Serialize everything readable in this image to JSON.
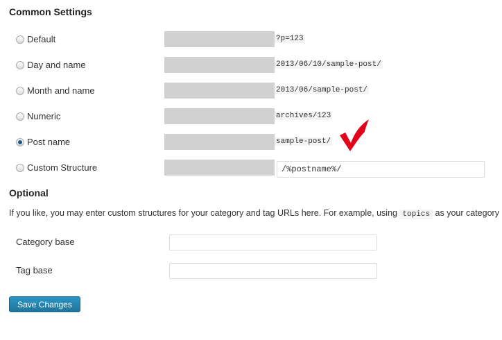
{
  "common": {
    "title": "Common Settings",
    "options": [
      {
        "label": "Default",
        "example": "?p=123",
        "checked": false
      },
      {
        "label": "Day and name",
        "example": "2013/06/10/sample-post/",
        "checked": false
      },
      {
        "label": "Month and name",
        "example": "2013/06/sample-post/",
        "checked": false
      },
      {
        "label": "Numeric",
        "example": "archives/123",
        "checked": false
      },
      {
        "label": "Post name",
        "example": "sample-post/",
        "checked": true
      },
      {
        "label": "Custom Structure",
        "value": "/%postname%/",
        "checked": false
      }
    ],
    "annotation_color": "#e3001b"
  },
  "optional": {
    "title": "Optional",
    "desc_before": "If you like, you may enter custom structures for your category and tag URLs here. For example, using ",
    "desc_code": "topics",
    "desc_after": " as your category base",
    "category_label": "Category base",
    "category_value": "",
    "tag_label": "Tag base",
    "tag_value": ""
  },
  "save_label": "Save Changes"
}
